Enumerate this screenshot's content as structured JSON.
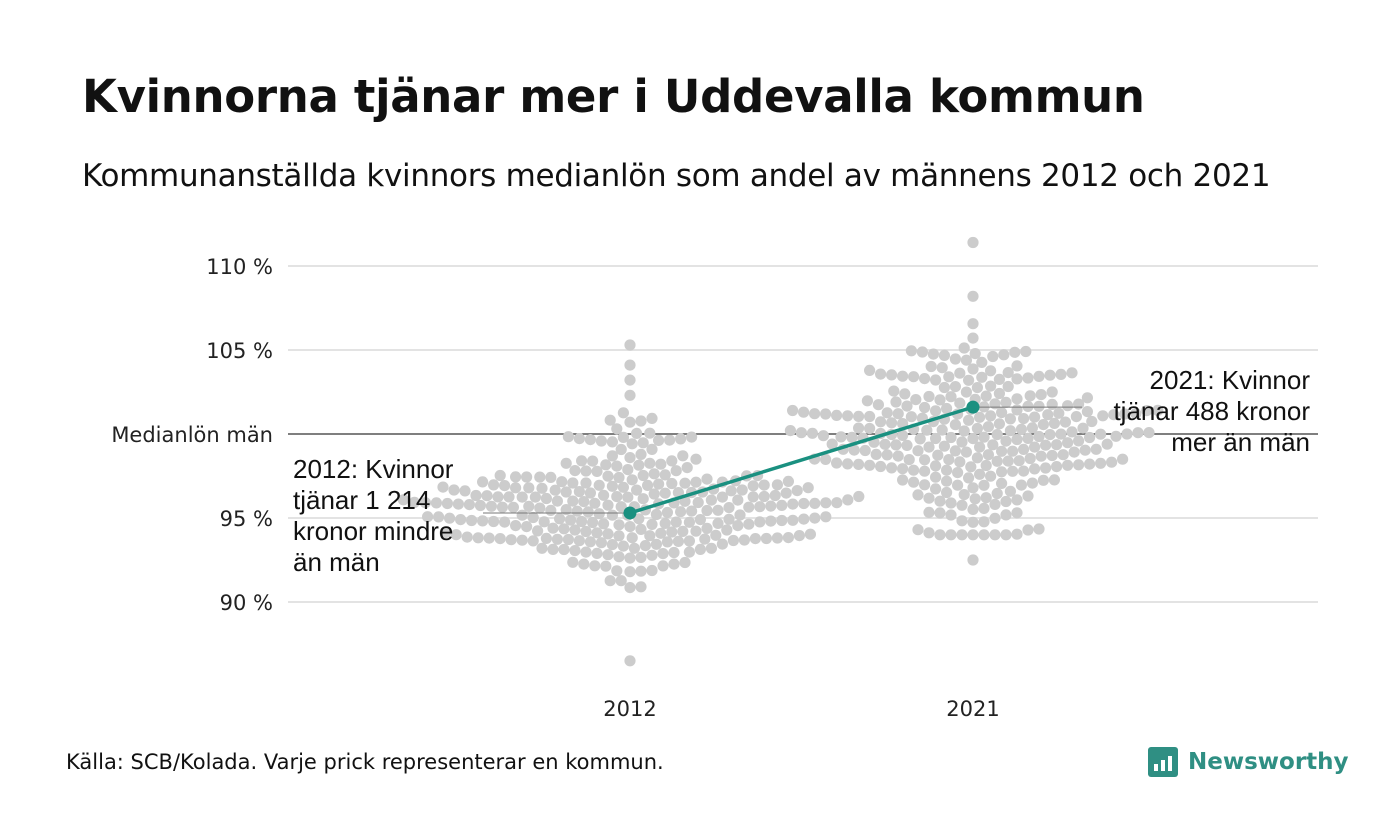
{
  "header": {
    "title": "Kvinnorna tjänar mer i Uddevalla kommun",
    "subtitle": "Kommunanställda kvinnors medianlön som andel av männens 2012 och 2021"
  },
  "footer": {
    "source": "Källa: SCB/Kolada. Varje prick representerar en kommun.",
    "brand": "Newsworthy"
  },
  "colors": {
    "dots": "#cccccc",
    "highlight": "#1a9080",
    "gridline": "#e3e3e3",
    "baseline": "#333333",
    "brand": "#2f8f83"
  },
  "chart_data": {
    "type": "scatter",
    "subtype": "beeswarm",
    "categories": [
      "2012",
      "2021"
    ],
    "y_ticks": [
      {
        "value": 90,
        "label": "90 %"
      },
      {
        "value": 95,
        "label": "95 %"
      },
      {
        "value": 100,
        "label": "Medianlön män"
      },
      {
        "value": 105,
        "label": "105 %"
      },
      {
        "value": 110,
        "label": "110 %"
      }
    ],
    "ylim": [
      86,
      111.5
    ],
    "reference_line": {
      "value": 100,
      "label": "Medianlön män"
    },
    "distribution": [
      {
        "category": "2012",
        "median": 95.6,
        "spread": 2.3,
        "min": 86.5,
        "max": 105.3
      },
      {
        "category": "2021",
        "median": 100.2,
        "spread": 2.6,
        "min": 92.5,
        "max": 111.4
      }
    ],
    "highlight": {
      "name": "Uddevalla",
      "values": [
        {
          "x": "2012",
          "y": 95.3
        },
        {
          "x": "2021",
          "y": 101.6
        }
      ]
    },
    "annotations": [
      {
        "x": "2012",
        "lines": [
          "2012: Kvinnor",
          "tjänar 1 214",
          "kronor mindre",
          "än män"
        ]
      },
      {
        "x": "2021",
        "lines": [
          "2021: Kvinnor",
          "tjänar 488 kronor",
          "mer än män"
        ]
      }
    ]
  }
}
